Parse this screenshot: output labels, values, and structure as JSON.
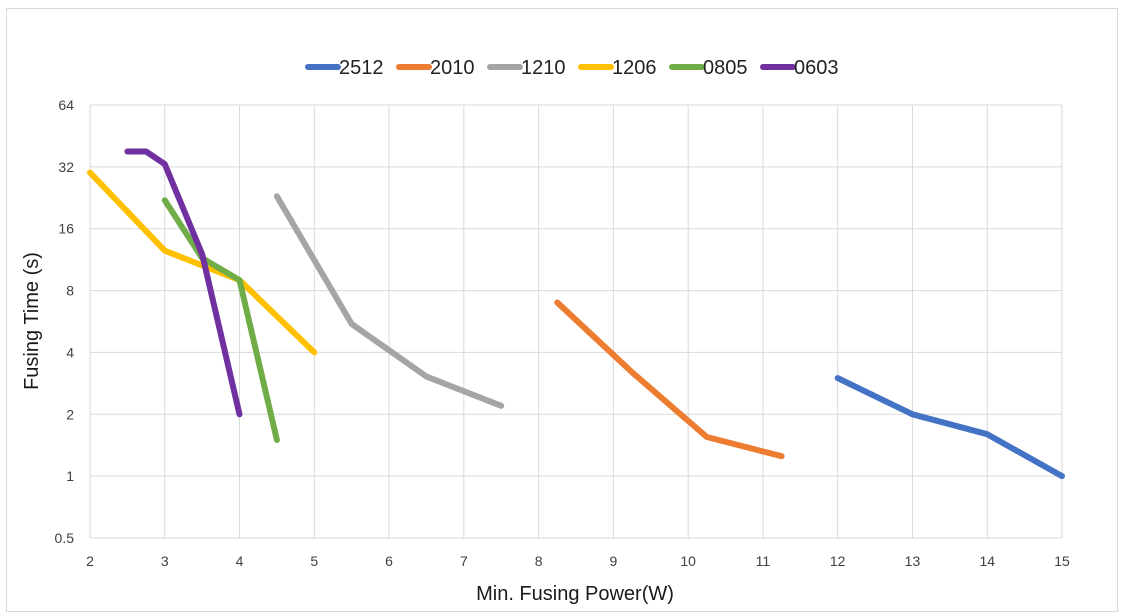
{
  "chart_data": {
    "type": "line",
    "title": "",
    "xlabel": "Min. Fusing Power(W)",
    "ylabel": "Fusing Time (s)",
    "xlim": [
      2,
      15
    ],
    "ylim": [
      0.5,
      64
    ],
    "yscale": "log2",
    "x_ticks": [
      2,
      3,
      4,
      5,
      6,
      7,
      8,
      9,
      10,
      11,
      12,
      13,
      14,
      15
    ],
    "y_ticks": [
      0.5,
      1,
      2,
      4,
      8,
      16,
      32,
      64
    ],
    "y_tick_labels": [
      "0.5",
      "1",
      "2",
      "4",
      "8",
      "16",
      "32",
      "64"
    ],
    "grid": true,
    "legend_position": "top",
    "series": [
      {
        "name": "2512",
        "color": "#4472c4",
        "x": [
          12,
          13,
          14,
          15
        ],
        "y": [
          3,
          2,
          1.6,
          1
        ]
      },
      {
        "name": "2010",
        "color": "#ed7d31",
        "x": [
          8.25,
          9.25,
          10.25,
          11.25
        ],
        "y": [
          7,
          3.2,
          1.55,
          1.25
        ]
      },
      {
        "name": "1210",
        "color": "#a5a5a5",
        "x": [
          4.5,
          5.5,
          6.5,
          7.5
        ],
        "y": [
          23,
          5.5,
          3.05,
          2.2
        ]
      },
      {
        "name": "1206",
        "color": "#ffc000",
        "x": [
          2,
          3,
          4,
          5
        ],
        "y": [
          30,
          12.5,
          9,
          4
        ]
      },
      {
        "name": "0805",
        "color": "#70ad47",
        "x": [
          3,
          3.5,
          4,
          4.5
        ],
        "y": [
          22,
          11.5,
          9,
          1.5
        ]
      },
      {
        "name": "0603",
        "color": "#7030a0",
        "x": [
          2.5,
          2.75,
          3,
          3.5,
          4
        ],
        "y": [
          38,
          38,
          33,
          12,
          2
        ]
      }
    ]
  }
}
